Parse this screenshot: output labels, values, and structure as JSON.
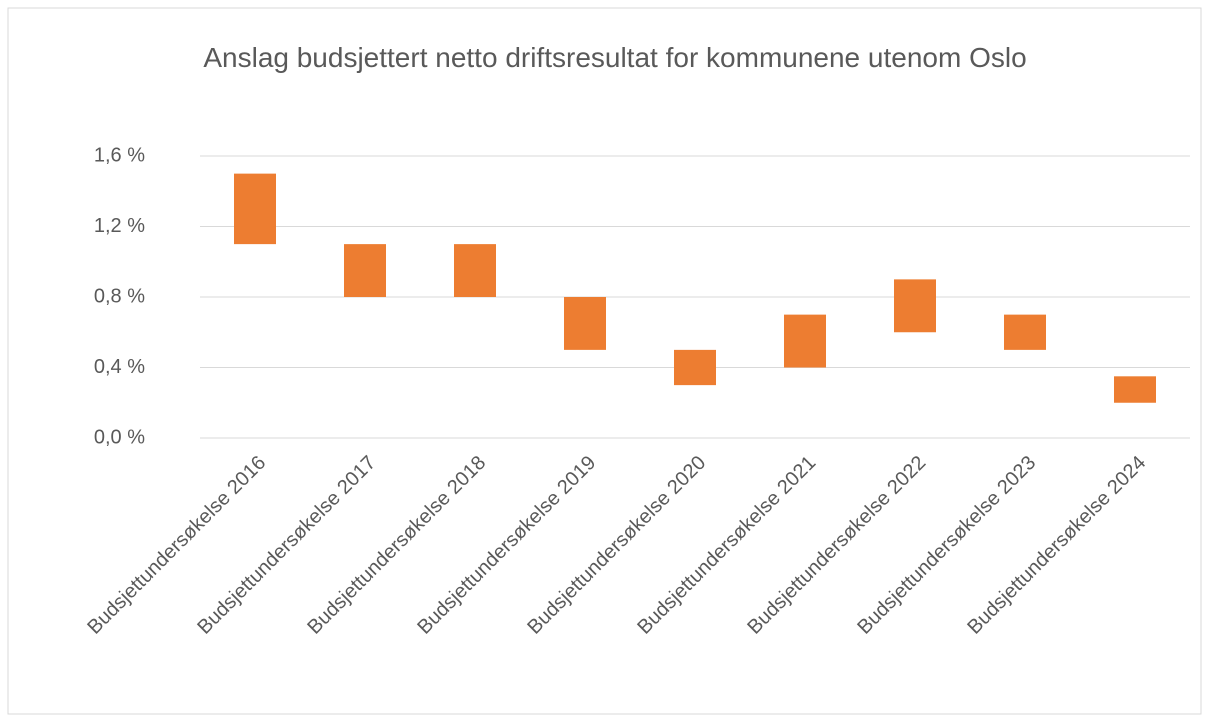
{
  "chart_data": {
    "type": "range_bar",
    "title": "Anslag budsjettert netto driftsresultat for kommunene utenom Oslo",
    "categories": [
      "Budsjettundersøkelse 2016",
      "Budsjettundersøkelse 2017",
      "Budsjettundersøkelse 2018",
      "Budsjettundersøkelse 2019",
      "Budsjettundersøkelse 2020",
      "Budsjettundersøkelse 2021",
      "Budsjettundersøkelse 2022",
      "Budsjettundersøkelse 2023",
      "Budsjettundersøkelse 2024"
    ],
    "low": [
      1.1,
      0.8,
      0.8,
      0.5,
      0.3,
      0.4,
      0.6,
      0.5,
      0.2
    ],
    "high": [
      1.5,
      1.1,
      1.1,
      0.8,
      0.5,
      0.7,
      0.9,
      0.7,
      0.35
    ],
    "color": "#ed7d31",
    "ylim": [
      0,
      1.6
    ],
    "yticks": [
      {
        "value": 0,
        "label": "0,0 %"
      },
      {
        "value": 0.4,
        "label": "0,4 %"
      },
      {
        "value": 0.8,
        "label": "0,8 %"
      },
      {
        "value": 1.2,
        "label": "1,2 %"
      },
      {
        "value": 1.6,
        "label": "1,6 %"
      }
    ],
    "grid": true
  }
}
